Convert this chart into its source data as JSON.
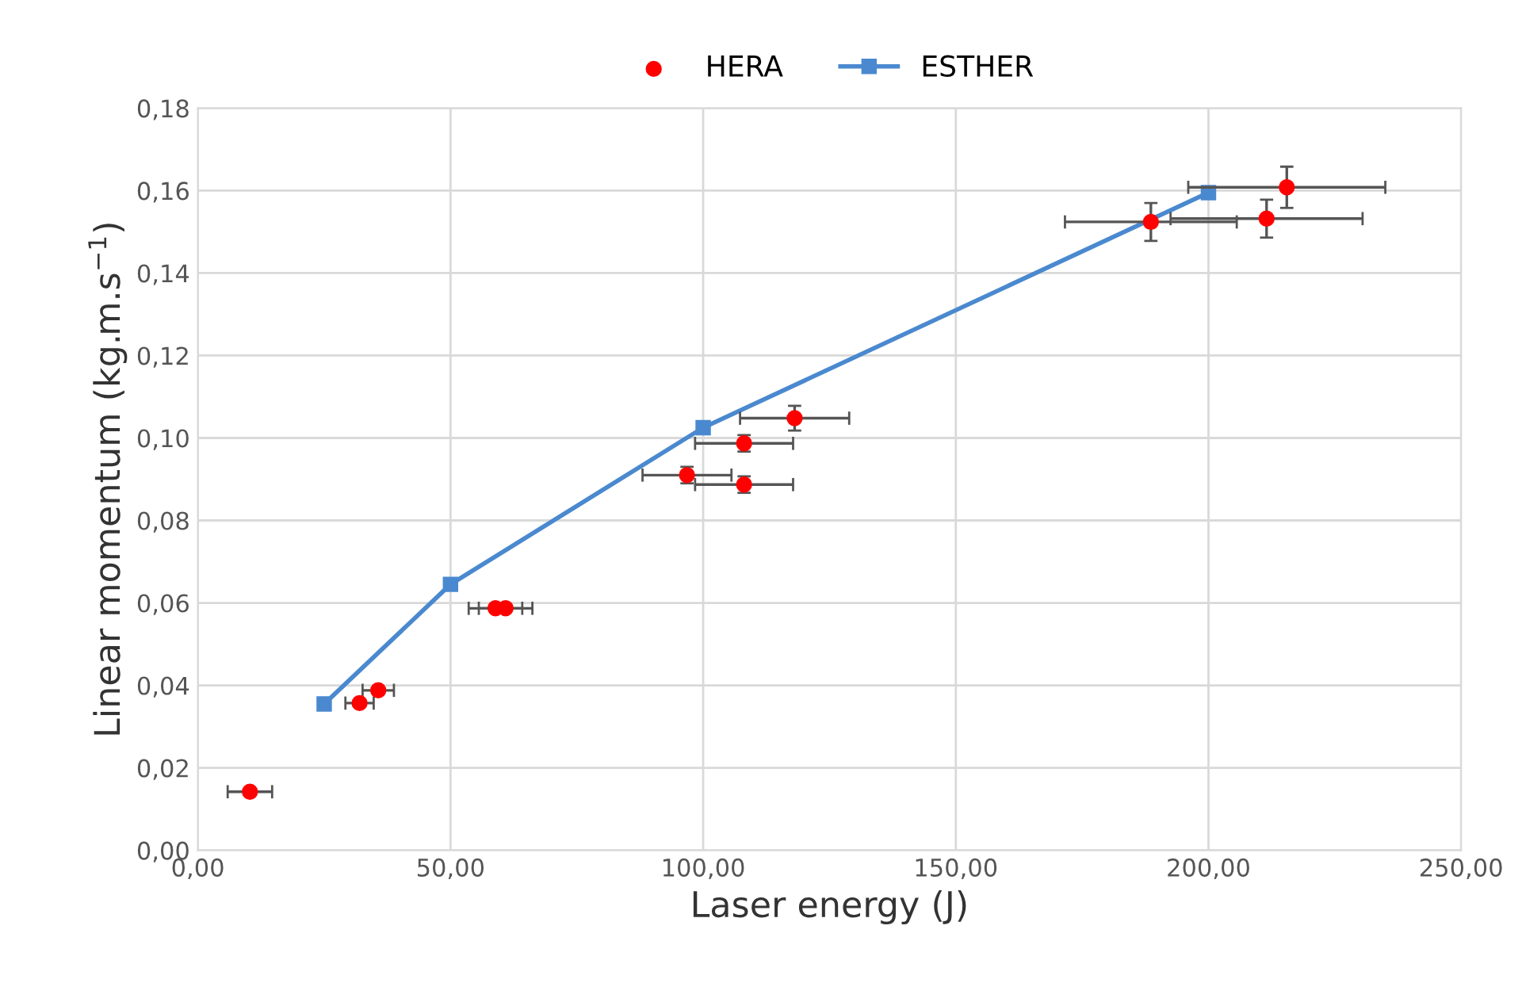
{
  "chart_data": {
    "type": "scatter",
    "xlabel": "Laser energy (J)",
    "ylabel": "Linear momentum (kg.m.s$^{−1}$)",
    "xlim": [
      0,
      250
    ],
    "ylim": [
      0,
      0.18
    ],
    "xticks": [
      {
        "value": 0,
        "label": "0,00"
      },
      {
        "value": 50,
        "label": "50,00"
      },
      {
        "value": 100,
        "label": "100,00"
      },
      {
        "value": 150,
        "label": "150,00"
      },
      {
        "value": 200,
        "label": "200,00"
      },
      {
        "value": 250,
        "label": "250,00"
      }
    ],
    "yticks": [
      {
        "value": 0,
        "label": "0,00"
      },
      {
        "value": 0.02,
        "label": "0,02"
      },
      {
        "value": 0.04,
        "label": "0,04"
      },
      {
        "value": 0.06,
        "label": "0,06"
      },
      {
        "value": 0.08,
        "label": "0,08"
      },
      {
        "value": 0.1,
        "label": "0,10"
      },
      {
        "value": 0.12,
        "label": "0,12"
      },
      {
        "value": 0.14,
        "label": "0,14"
      },
      {
        "value": 0.16,
        "label": "0,16"
      },
      {
        "value": 0.18,
        "label": "0,18"
      }
    ],
    "grid": true,
    "legend": "top",
    "series": [
      {
        "name": "HERA",
        "color": "#ff0000",
        "marker": "circle",
        "x": [
          10.3,
          32,
          35.7,
          58.9,
          60.9,
          96.8,
          108.1,
          108.1,
          118.1,
          188.6,
          211.5,
          215.5
        ],
        "values": [
          0.0142,
          0.0357,
          0.0388,
          0.0587,
          0.0587,
          0.091,
          0.0987,
          0.0887,
          0.1048,
          0.1524,
          0.1532,
          0.1608
        ],
        "xerrors": [
          4.4,
          2.8,
          3.1,
          5.3,
          5.3,
          8.8,
          9.7,
          9.7,
          10.8,
          17,
          19,
          19.5
        ],
        "errors": [
          null,
          null,
          null,
          null,
          null,
          0.002,
          0.002,
          0.002,
          0.003,
          0.0046,
          0.0046,
          0.005
        ]
      },
      {
        "name": "ESTHER",
        "type": "line",
        "color": "#4a89cf",
        "marker": "square",
        "x": [
          25,
          50,
          100,
          200
        ],
        "values": [
          0.0355,
          0.0645,
          0.1025,
          0.1595
        ]
      }
    ]
  }
}
